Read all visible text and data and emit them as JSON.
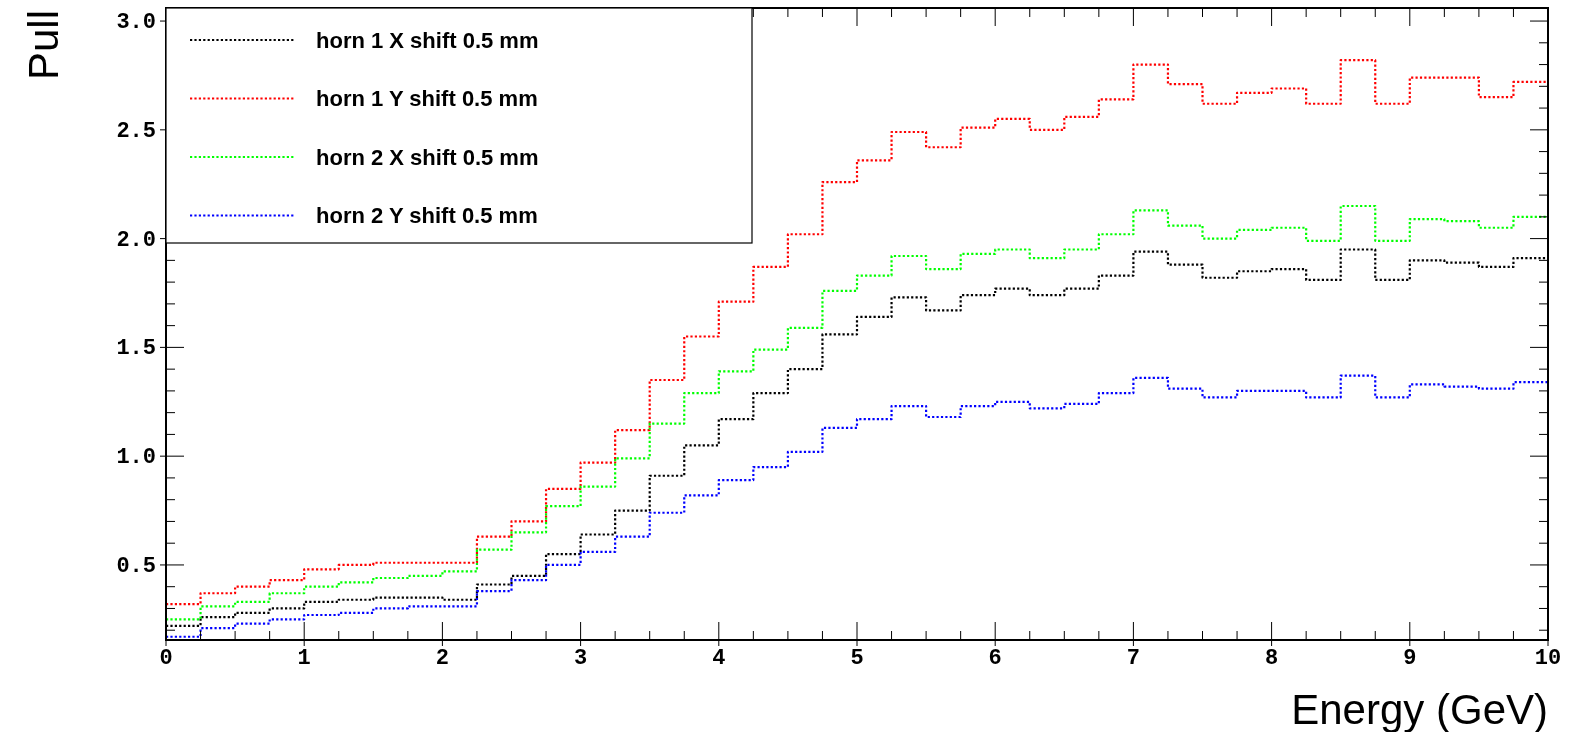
{
  "chart_data": {
    "type": "step",
    "xlabel": "Energy (GeV)",
    "ylabel": "Pull",
    "x": [
      0,
      0.25,
      0.5,
      0.75,
      1,
      1.25,
      1.5,
      1.75,
      2,
      2.25,
      2.5,
      2.75,
      3,
      3.25,
      3.5,
      3.75,
      4,
      4.25,
      4.5,
      4.75,
      5,
      5.25,
      5.5,
      5.75,
      6,
      6.25,
      6.5,
      6.75,
      7,
      7.25,
      7.5,
      7.75,
      8,
      8.25,
      8.5,
      8.75,
      9,
      9.25,
      9.5,
      9.75,
      10
    ],
    "series": [
      {
        "name": "horn 1 X shift 0.5 mm",
        "color": "#000000",
        "values": [
          0.22,
          0.26,
          0.28,
          0.3,
          0.33,
          0.34,
          0.35,
          0.35,
          0.34,
          0.41,
          0.45,
          0.55,
          0.64,
          0.75,
          0.91,
          1.05,
          1.17,
          1.29,
          1.4,
          1.56,
          1.64,
          1.73,
          1.67,
          1.74,
          1.77,
          1.74,
          1.77,
          1.83,
          1.94,
          1.88,
          1.82,
          1.85,
          1.86,
          1.81,
          1.95,
          1.81,
          1.9,
          1.89,
          1.87,
          1.91,
          1.91
        ]
      },
      {
        "name": "horn 1 Y shift 0.5 mm",
        "color": "#ff0000",
        "values": [
          0.32,
          0.37,
          0.4,
          0.43,
          0.48,
          0.5,
          0.51,
          0.51,
          0.51,
          0.63,
          0.7,
          0.85,
          0.97,
          1.12,
          1.35,
          1.55,
          1.71,
          1.87,
          2.02,
          2.26,
          2.36,
          2.49,
          2.42,
          2.51,
          2.55,
          2.5,
          2.56,
          2.64,
          2.8,
          2.71,
          2.62,
          2.67,
          2.69,
          2.62,
          2.82,
          2.62,
          2.74,
          2.74,
          2.65,
          2.72,
          2.72
        ]
      },
      {
        "name": "horn 2 X shift 0.5 mm",
        "color": "#00ff00",
        "values": [
          0.25,
          0.31,
          0.33,
          0.37,
          0.4,
          0.42,
          0.44,
          0.45,
          0.47,
          0.57,
          0.65,
          0.77,
          0.86,
          0.99,
          1.15,
          1.29,
          1.39,
          1.49,
          1.59,
          1.76,
          1.83,
          1.92,
          1.86,
          1.93,
          1.95,
          1.91,
          1.95,
          2.02,
          2.13,
          2.06,
          2.0,
          2.04,
          2.05,
          1.99,
          2.15,
          1.99,
          2.09,
          2.08,
          2.05,
          2.1,
          2.1
        ]
      },
      {
        "name": "horn 2 Y shift 0.5 mm",
        "color": "#0000ff",
        "values": [
          0.17,
          0.21,
          0.23,
          0.25,
          0.27,
          0.28,
          0.3,
          0.31,
          0.31,
          0.38,
          0.43,
          0.5,
          0.56,
          0.63,
          0.74,
          0.82,
          0.89,
          0.95,
          1.02,
          1.13,
          1.17,
          1.23,
          1.18,
          1.23,
          1.25,
          1.22,
          1.24,
          1.29,
          1.36,
          1.31,
          1.27,
          1.3,
          1.3,
          1.27,
          1.37,
          1.27,
          1.33,
          1.32,
          1.31,
          1.34,
          1.34
        ]
      }
    ],
    "xlim": [
      0,
      10
    ],
    "ylim": [
      0.155,
      3.06
    ],
    "xticks": [
      0,
      1,
      2,
      3,
      4,
      5,
      6,
      7,
      8,
      9,
      10
    ],
    "yticks": [
      {
        "value": 0.5,
        "label": "0.5"
      },
      {
        "value": 1,
        "label": "1.0"
      },
      {
        "value": 1.5,
        "label": "1.5"
      },
      {
        "value": 2,
        "label": "2.0"
      },
      {
        "value": 2.5,
        "label": "2.5"
      },
      {
        "value": 3,
        "label": "3.0"
      }
    ],
    "legend": "top left",
    "line_style": "dotted"
  }
}
